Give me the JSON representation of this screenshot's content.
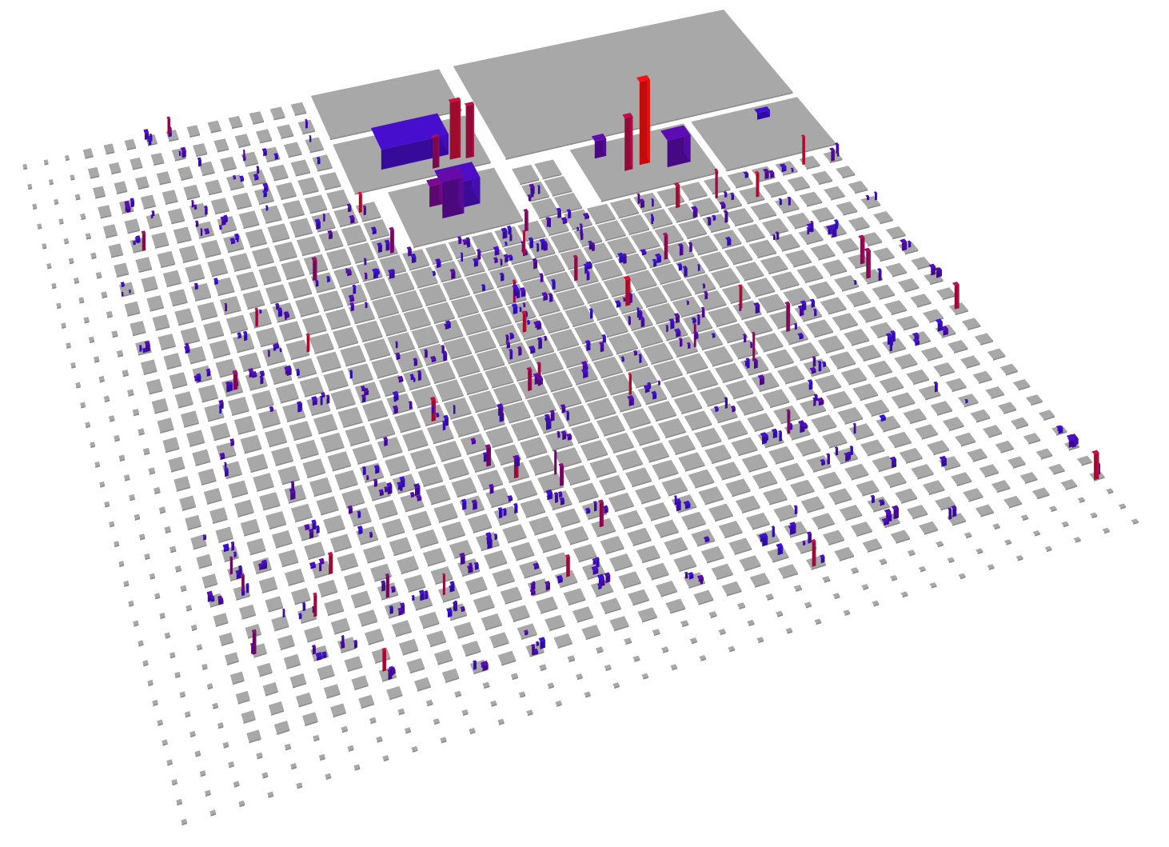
{
  "view": {
    "description_type": "software-city-3d-visualization"
  },
  "colors": {
    "background": "#ffffff",
    "plot_top": "#a8a8a8",
    "plot_side": "#8c8c8c",
    "building_low": "#3a10e0",
    "building_mid": "#6a0aa0",
    "building_high": "#ff1010"
  },
  "grid": {
    "rows": 34,
    "cols": 34
  },
  "districts": [
    {
      "name": "root-large",
      "r0": 0.0,
      "c0": 0.62,
      "r1": 0.16,
      "c1": 1.0,
      "buildings": []
    },
    {
      "name": "district-a",
      "r0": 0.0,
      "c0": 0.42,
      "r1": 0.07,
      "c1": 0.6,
      "buildings": []
    },
    {
      "name": "district-b",
      "r0": 0.08,
      "c0": 0.42,
      "r1": 0.16,
      "c1": 0.6,
      "buildings": [
        {
          "u": 0.5,
          "v": 0.45,
          "w": 0.5,
          "d": 0.45,
          "h": 0.2,
          "heat": 0.15
        },
        {
          "u": 0.78,
          "v": 0.75,
          "w": 0.08,
          "d": 0.06,
          "h": 0.55,
          "heat": 0.85
        },
        {
          "u": 0.88,
          "v": 0.8,
          "w": 0.06,
          "d": 0.05,
          "h": 0.5,
          "heat": 0.8
        },
        {
          "u": 0.62,
          "v": 0.85,
          "w": 0.05,
          "d": 0.05,
          "h": 0.3,
          "heat": 0.7
        }
      ]
    },
    {
      "name": "district-c",
      "r0": 0.17,
      "c0": 0.46,
      "r1": 0.26,
      "c1": 0.6,
      "buildings": [
        {
          "u": 0.55,
          "v": 0.4,
          "w": 0.35,
          "d": 0.3,
          "h": 0.25,
          "heat": 0.2
        },
        {
          "u": 0.45,
          "v": 0.55,
          "w": 0.2,
          "d": 0.2,
          "h": 0.35,
          "heat": 0.45
        },
        {
          "u": 0.35,
          "v": 0.35,
          "w": 0.12,
          "d": 0.12,
          "h": 0.2,
          "heat": 0.55
        }
      ]
    },
    {
      "name": "district-d",
      "r0": 0.17,
      "c0": 0.7,
      "r1": 0.26,
      "c1": 0.85,
      "buildings": [
        {
          "u": 0.5,
          "v": 0.5,
          "w": 0.09,
          "d": 0.09,
          "h": 0.7,
          "heat": 1.0
        },
        {
          "u": 0.35,
          "v": 0.55,
          "w": 0.07,
          "d": 0.07,
          "h": 0.45,
          "heat": 0.8
        },
        {
          "u": 0.75,
          "v": 0.6,
          "w": 0.2,
          "d": 0.2,
          "h": 0.22,
          "heat": 0.35
        },
        {
          "u": 0.2,
          "v": 0.2,
          "w": 0.1,
          "d": 0.1,
          "h": 0.15,
          "heat": 0.4
        }
      ]
    },
    {
      "name": "district-e",
      "r0": 0.17,
      "c0": 0.86,
      "r1": 0.26,
      "c1": 1.0,
      "buildings": [
        {
          "u": 0.6,
          "v": 0.2,
          "w": 0.12,
          "d": 0.08,
          "h": 0.05,
          "heat": 0.05
        }
      ]
    }
  ]
}
